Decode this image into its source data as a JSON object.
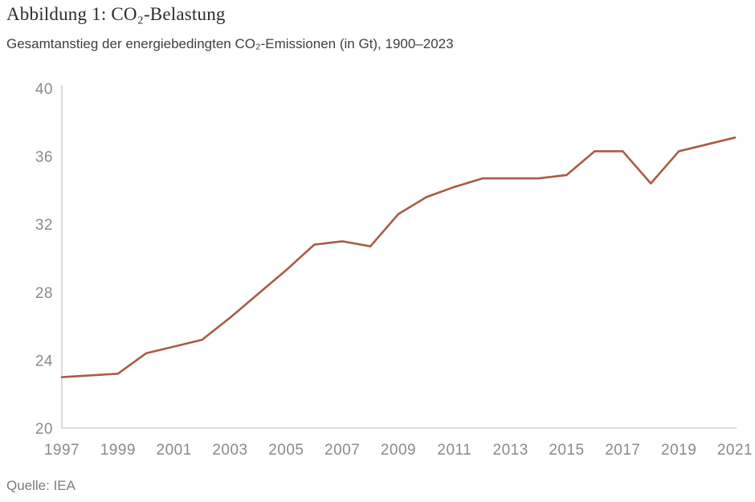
{
  "header": {
    "title": "Abbildung 1: CO₂-Belastung",
    "subtitle": "Gesamtanstieg der energiebedingten CO₂-Emissionen (in Gt), 1900–2023"
  },
  "footer": {
    "source": "Quelle: IEA"
  },
  "chart_data": {
    "type": "line",
    "title": "Abbildung 1: CO₂-Belastung",
    "subtitle": "Gesamtanstieg der energiebedingten CO₂-Emissionen (in Gt), 1900–2023",
    "source": "Quelle: IEA",
    "series_name": "Energiebedingte CO₂-Emissionen (Gt)",
    "x": [
      1997,
      1998,
      1999,
      2000,
      2001,
      2002,
      2003,
      2004,
      2005,
      2006,
      2007,
      2008,
      2009,
      2010,
      2011,
      2012,
      2013,
      2014,
      2015,
      2016,
      2017,
      2018,
      2019,
      2020,
      2021
    ],
    "values": [
      23.0,
      23.1,
      23.2,
      24.4,
      24.8,
      25.2,
      26.5,
      27.9,
      29.3,
      30.8,
      31.0,
      30.7,
      32.6,
      33.6,
      34.2,
      34.7,
      34.7,
      34.7,
      34.9,
      36.3,
      36.3,
      34.4,
      36.3,
      36.7,
      37.1
    ],
    "xticks": [
      1997,
      1999,
      2001,
      2003,
      2005,
      2007,
      2009,
      2011,
      2013,
      2015,
      2017,
      2019,
      2021
    ],
    "yticks": [
      20,
      24,
      28,
      32,
      36,
      40
    ],
    "xlim": [
      1997,
      2021
    ],
    "ylim": [
      20,
      40
    ],
    "xlabel": "",
    "ylabel": "",
    "grid": false,
    "legend": false,
    "colors": {
      "line": "#a85c44",
      "axis": "#c9c9c9",
      "tick_labels": "#8a8a8a"
    }
  }
}
